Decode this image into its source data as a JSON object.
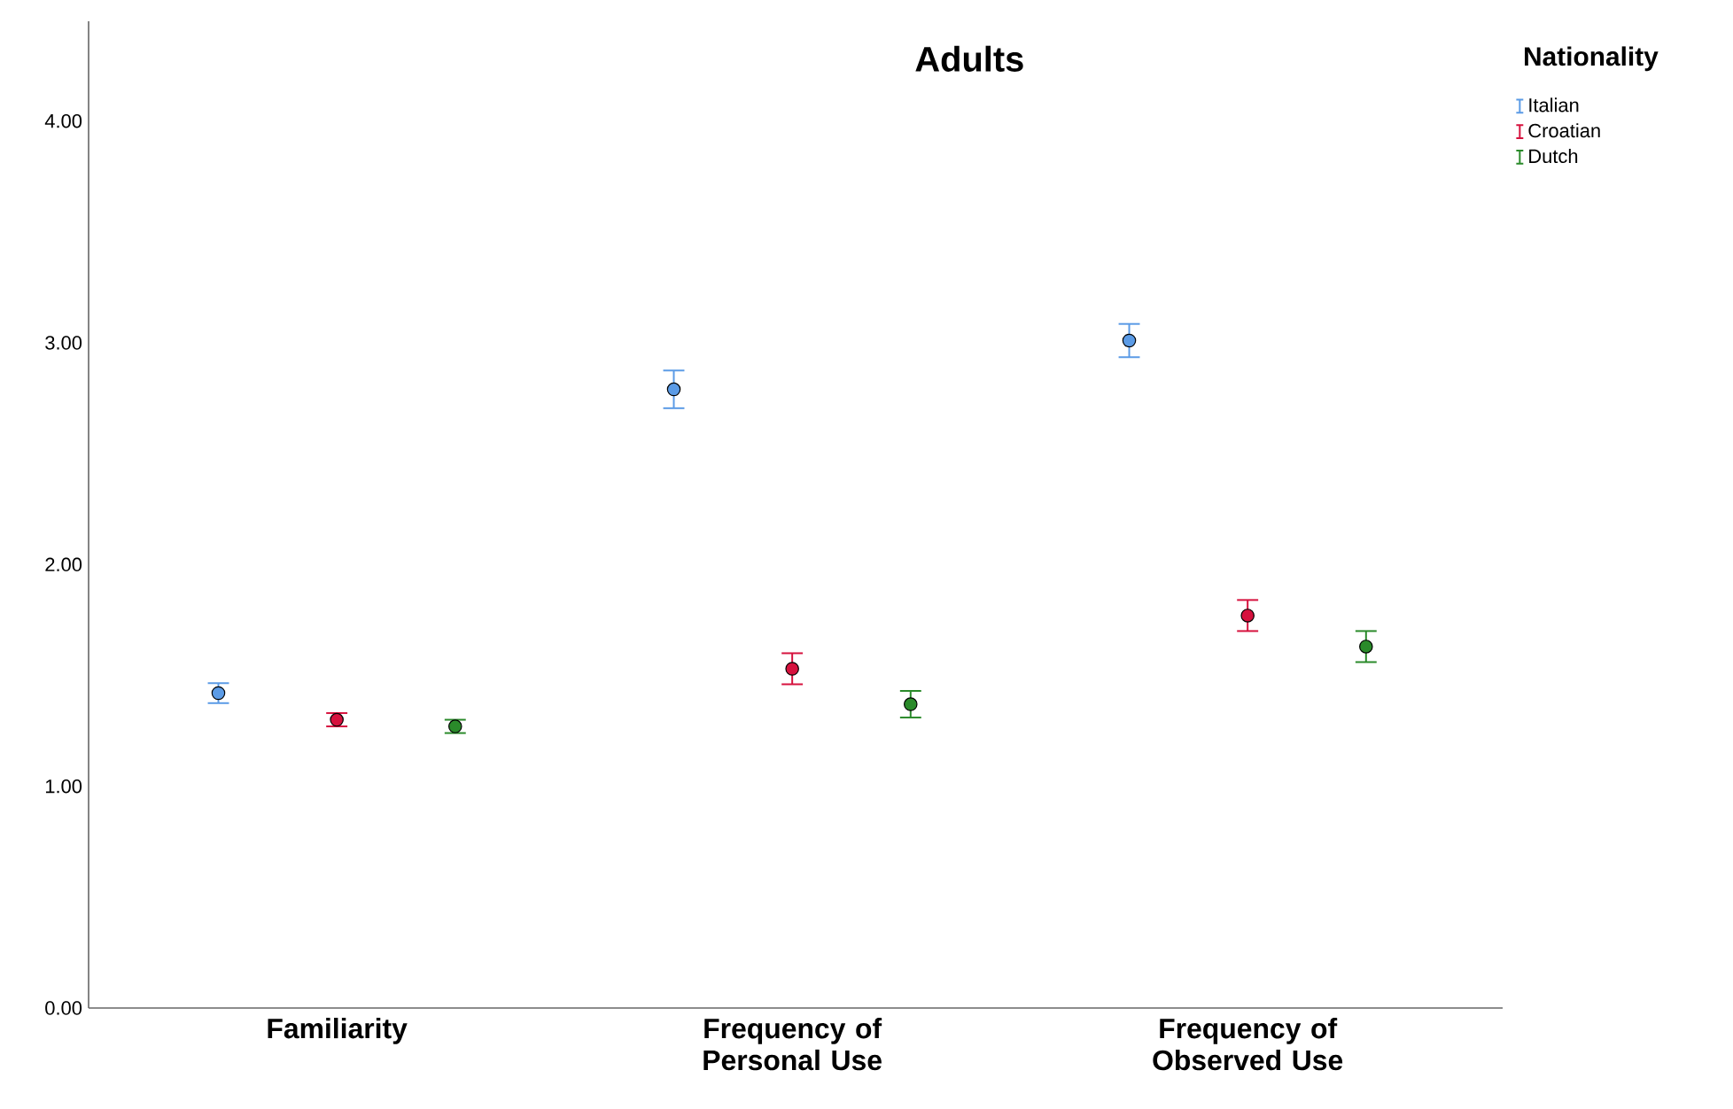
{
  "chart_data": {
    "type": "scatter",
    "title": "Adults",
    "legend_title": "Nationality",
    "categories": [
      "Familiarity",
      "Frequency of Personal Use",
      "Frequency of Observed Use"
    ],
    "series": [
      {
        "name": "Italian",
        "color": "#5b9be6",
        "values": [
          1.42,
          2.79,
          3.01
        ],
        "errors": [
          0.045,
          0.085,
          0.075
        ]
      },
      {
        "name": "Croatian",
        "color": "#d6123e",
        "values": [
          1.3,
          1.53,
          1.77
        ],
        "errors": [
          0.03,
          0.07,
          0.07
        ]
      },
      {
        "name": "Dutch",
        "color": "#2a8a2a",
        "values": [
          1.27,
          1.37,
          1.63
        ],
        "errors": [
          0.03,
          0.06,
          0.07
        ]
      }
    ],
    "ylim": [
      0,
      4.45
    ],
    "yticks": [
      {
        "value": 0,
        "label": "0.00"
      },
      {
        "value": 1,
        "label": "1.00"
      },
      {
        "value": 2,
        "label": "2.00"
      },
      {
        "value": 3,
        "label": "3.00"
      },
      {
        "value": 4,
        "label": "4.00"
      }
    ],
    "legend": "top right",
    "marker": "circle",
    "grid": false
  }
}
